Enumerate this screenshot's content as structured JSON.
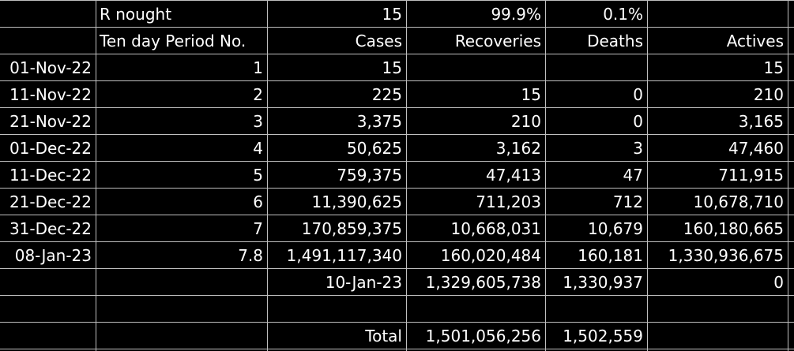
{
  "header": {
    "row1": {
      "label": "R nought",
      "cases": "15",
      "recoveries": "99.9%",
      "deaths": "0.1%"
    },
    "row2": {
      "period": "Ten day Period No.",
      "cases": "Cases",
      "recoveries": "Recoveries",
      "deaths": "Deaths",
      "actives": "Actives"
    }
  },
  "rows": [
    {
      "date": "01-Nov-22",
      "period": "1",
      "cases": "15",
      "recoveries": "",
      "deaths": "",
      "actives": "15"
    },
    {
      "date": "11-Nov-22",
      "period": "2",
      "cases": "225",
      "recoveries": "15",
      "deaths": "0",
      "actives": "210"
    },
    {
      "date": "21-Nov-22",
      "period": "3",
      "cases": "3,375",
      "recoveries": "210",
      "deaths": "0",
      "actives": "3,165"
    },
    {
      "date": "01-Dec-22",
      "period": "4",
      "cases": "50,625",
      "recoveries": "3,162",
      "deaths": "3",
      "actives": "47,460"
    },
    {
      "date": "11-Dec-22",
      "period": "5",
      "cases": "759,375",
      "recoveries": "47,413",
      "deaths": "47",
      "actives": "711,915"
    },
    {
      "date": "21-Dec-22",
      "period": "6",
      "cases": "11,390,625",
      "recoveries": "711,203",
      "deaths": "712",
      "actives": "10,678,710"
    },
    {
      "date": "31-Dec-22",
      "period": "7",
      "cases": "170,859,375",
      "recoveries": "10,668,031",
      "deaths": "10,679",
      "actives": "160,180,665"
    },
    {
      "date": "08-Jan-23",
      "period": "7.8",
      "cases": "1,491,117,340",
      "recoveries": "160,020,484",
      "deaths": "160,181",
      "actives": "1,330,936,675"
    }
  ],
  "final": {
    "cases": "10-Jan-23",
    "recoveries": "1,329,605,738",
    "deaths": "1,330,937",
    "actives": "0"
  },
  "total": {
    "label": "Total",
    "recoveries": "1,501,056,256",
    "deaths": "1,502,559"
  }
}
